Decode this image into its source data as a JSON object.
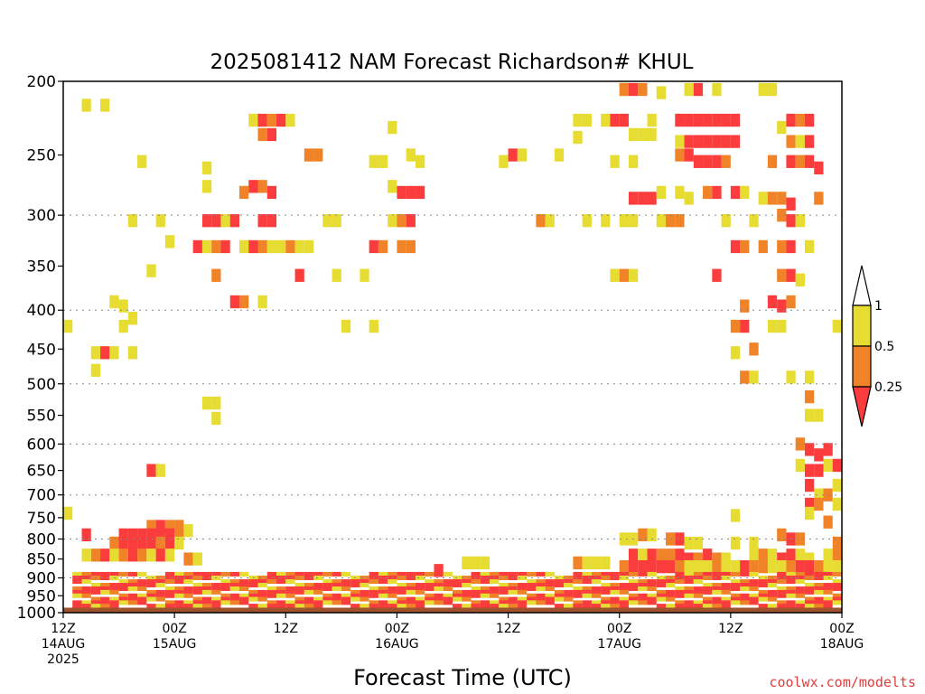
{
  "chart_data": {
    "type": "heatmap",
    "title": "2025081412 NAM Forecast Richardson# KHUL",
    "xlabel": "Forecast Time (UTC)",
    "ylabel": "",
    "y_scale": "log",
    "y_reversed": true,
    "ylim": [
      1000,
      200
    ],
    "xlim": [
      0,
      84
    ],
    "x_units": "hours after 12Z 14AUG 2025",
    "y_ticks": [
      200,
      250,
      300,
      350,
      400,
      450,
      500,
      550,
      600,
      650,
      700,
      750,
      800,
      850,
      900,
      950,
      1000
    ],
    "y_gridlines": [
      300,
      400,
      500,
      600,
      700,
      800,
      900,
      1000
    ],
    "x_ticks": [
      {
        "x": 0,
        "line1": "12Z",
        "line2": "14AUG",
        "line3": "2025"
      },
      {
        "x": 12,
        "line1": "00Z",
        "line2": "15AUG",
        "line3": ""
      },
      {
        "x": 24,
        "line1": "12Z",
        "line2": "",
        "line3": ""
      },
      {
        "x": 36,
        "line1": "00Z",
        "line2": "16AUG",
        "line3": ""
      },
      {
        "x": 48,
        "line1": "12Z",
        "line2": "",
        "line3": ""
      },
      {
        "x": 60,
        "line1": "00Z",
        "line2": "17AUG",
        "line3": ""
      },
      {
        "x": 72,
        "line1": "12Z",
        "line2": "",
        "line3": ""
      },
      {
        "x": 84,
        "line1": "00Z",
        "line2": "18AUG",
        "line3": ""
      }
    ],
    "grid": true,
    "colorbar": {
      "placement": "right",
      "labels": [
        "1",
        "0.5",
        "0.25"
      ],
      "bins": [
        {
          "range": "0.5-1",
          "color": "#e6dc32"
        },
        {
          "range": "0.25-0.5",
          "color": "#f08228"
        },
        {
          "range": "<0.25",
          "color": "#fa3c3c"
        }
      ]
    },
    "colors": {
      "Y": "#e6dc32",
      "O": "#f08228",
      "R": "#fa3c3c",
      "ground": "#a0522d"
    },
    "ground_below_hpa": 985,
    "cells": [
      [
        2,
        215,
        "Y"
      ],
      [
        4,
        215,
        "Y"
      ],
      [
        60,
        205,
        "Y"
      ],
      [
        60,
        205,
        "O"
      ],
      [
        61,
        205,
        "R"
      ],
      [
        62,
        205,
        "O"
      ],
      [
        64,
        207,
        "Y"
      ],
      [
        67,
        205,
        "Y"
      ],
      [
        68,
        205,
        "R"
      ],
      [
        70,
        205,
        "Y"
      ],
      [
        75,
        205,
        "Y"
      ],
      [
        76,
        205,
        "Y"
      ],
      [
        20,
        225,
        "Y"
      ],
      [
        21,
        225,
        "R"
      ],
      [
        22,
        225,
        "O"
      ],
      [
        23,
        225,
        "R"
      ],
      [
        24,
        225,
        "Y"
      ],
      [
        35,
        230,
        "Y"
      ],
      [
        55,
        225,
        "Y"
      ],
      [
        56,
        225,
        "Y"
      ],
      [
        58,
        225,
        "Y"
      ],
      [
        59,
        225,
        "R"
      ],
      [
        60,
        225,
        "R"
      ],
      [
        63,
        225,
        "Y"
      ],
      [
        66,
        225,
        "R"
      ],
      [
        67,
        225,
        "R"
      ],
      [
        68,
        225,
        "R"
      ],
      [
        69,
        225,
        "R"
      ],
      [
        70,
        225,
        "R"
      ],
      [
        71,
        225,
        "R"
      ],
      [
        72,
        225,
        "R"
      ],
      [
        77,
        230,
        "Y"
      ],
      [
        78,
        225,
        "R"
      ],
      [
        79,
        225,
        "O"
      ],
      [
        80,
        225,
        "R"
      ],
      [
        21,
        235,
        "O"
      ],
      [
        22,
        235,
        "R"
      ],
      [
        55,
        237,
        "Y"
      ],
      [
        61,
        235,
        "Y"
      ],
      [
        62,
        235,
        "Y"
      ],
      [
        63,
        235,
        "Y"
      ],
      [
        66,
        240,
        "Y"
      ],
      [
        67,
        240,
        "R"
      ],
      [
        68,
        240,
        "R"
      ],
      [
        69,
        240,
        "R"
      ],
      [
        70,
        240,
        "R"
      ],
      [
        71,
        240,
        "R"
      ],
      [
        72,
        240,
        "R"
      ],
      [
        78,
        240,
        "O"
      ],
      [
        79,
        240,
        "Y"
      ],
      [
        80,
        240,
        "R"
      ],
      [
        8,
        255,
        "Y"
      ],
      [
        15,
        260,
        "Y"
      ],
      [
        26,
        250,
        "O"
      ],
      [
        27,
        250,
        "O"
      ],
      [
        33,
        255,
        "Y"
      ],
      [
        34,
        255,
        "Y"
      ],
      [
        37,
        250,
        "Y"
      ],
      [
        38,
        255,
        "Y"
      ],
      [
        47,
        255,
        "Y"
      ],
      [
        48,
        250,
        "R"
      ],
      [
        49,
        250,
        "Y"
      ],
      [
        53,
        250,
        "Y"
      ],
      [
        59,
        255,
        "Y"
      ],
      [
        61,
        255,
        "Y"
      ],
      [
        66,
        250,
        "O"
      ],
      [
        67,
        250,
        "R"
      ],
      [
        68,
        255,
        "R"
      ],
      [
        69,
        255,
        "R"
      ],
      [
        70,
        255,
        "R"
      ],
      [
        71,
        255,
        "O"
      ],
      [
        76,
        255,
        "O"
      ],
      [
        78,
        255,
        "R"
      ],
      [
        79,
        255,
        "O"
      ],
      [
        80,
        255,
        "R"
      ],
      [
        81,
        260,
        "R"
      ],
      [
        15,
        275,
        "Y"
      ],
      [
        19,
        280,
        "O"
      ],
      [
        20,
        275,
        "R"
      ],
      [
        21,
        275,
        "O"
      ],
      [
        22,
        280,
        "R"
      ],
      [
        35,
        275,
        "Y"
      ],
      [
        36,
        280,
        "R"
      ],
      [
        37,
        280,
        "R"
      ],
      [
        38,
        280,
        "R"
      ],
      [
        61,
        285,
        "R"
      ],
      [
        62,
        285,
        "R"
      ],
      [
        63,
        285,
        "R"
      ],
      [
        64,
        280,
        "Y"
      ],
      [
        66,
        280,
        "Y"
      ],
      [
        67,
        285,
        "Y"
      ],
      [
        69,
        280,
        "O"
      ],
      [
        70,
        280,
        "R"
      ],
      [
        72,
        280,
        "R"
      ],
      [
        73,
        280,
        "Y"
      ],
      [
        75,
        285,
        "Y"
      ],
      [
        76,
        285,
        "O"
      ],
      [
        77,
        285,
        "O"
      ],
      [
        78,
        290,
        "R"
      ],
      [
        81,
        285,
        "O"
      ],
      [
        7,
        305,
        "Y"
      ],
      [
        10,
        305,
        "Y"
      ],
      [
        15,
        305,
        "R"
      ],
      [
        16,
        305,
        "R"
      ],
      [
        17,
        305,
        "Y"
      ],
      [
        18,
        305,
        "R"
      ],
      [
        21,
        305,
        "R"
      ],
      [
        22,
        305,
        "R"
      ],
      [
        28,
        305,
        "Y"
      ],
      [
        29,
        305,
        "Y"
      ],
      [
        35,
        305,
        "Y"
      ],
      [
        36,
        305,
        "O"
      ],
      [
        37,
        305,
        "R"
      ],
      [
        51,
        305,
        "O"
      ],
      [
        52,
        305,
        "Y"
      ],
      [
        56,
        305,
        "Y"
      ],
      [
        58,
        305,
        "Y"
      ],
      [
        60,
        305,
        "Y"
      ],
      [
        61,
        305,
        "Y"
      ],
      [
        64,
        305,
        "Y"
      ],
      [
        65,
        305,
        "O"
      ],
      [
        66,
        305,
        "O"
      ],
      [
        71,
        305,
        "Y"
      ],
      [
        74,
        305,
        "Y"
      ],
      [
        77,
        300,
        "O"
      ],
      [
        78,
        305,
        "R"
      ],
      [
        79,
        305,
        "Y"
      ],
      [
        11,
        325,
        "Y"
      ],
      [
        14,
        330,
        "R"
      ],
      [
        15,
        330,
        "Y"
      ],
      [
        16,
        330,
        "O"
      ],
      [
        17,
        330,
        "R"
      ],
      [
        19,
        330,
        "Y"
      ],
      [
        20,
        330,
        "R"
      ],
      [
        21,
        330,
        "O"
      ],
      [
        22,
        330,
        "Y"
      ],
      [
        23,
        330,
        "Y"
      ],
      [
        24,
        330,
        "O"
      ],
      [
        25,
        330,
        "Y"
      ],
      [
        26,
        330,
        "Y"
      ],
      [
        33,
        330,
        "R"
      ],
      [
        34,
        330,
        "O"
      ],
      [
        36,
        330,
        "O"
      ],
      [
        37,
        330,
        "O"
      ],
      [
        72,
        330,
        "R"
      ],
      [
        73,
        330,
        "O"
      ],
      [
        75,
        330,
        "O"
      ],
      [
        77,
        330,
        "O"
      ],
      [
        78,
        330,
        "R"
      ],
      [
        80,
        330,
        "Y"
      ],
      [
        9,
        355,
        "Y"
      ],
      [
        16,
        360,
        "O"
      ],
      [
        25,
        360,
        "R"
      ],
      [
        29,
        360,
        "Y"
      ],
      [
        32,
        360,
        "Y"
      ],
      [
        59,
        360,
        "Y"
      ],
      [
        60,
        360,
        "O"
      ],
      [
        61,
        360,
        "Y"
      ],
      [
        70,
        360,
        "R"
      ],
      [
        77,
        360,
        "O"
      ],
      [
        78,
        360,
        "R"
      ],
      [
        79,
        365,
        "Y"
      ],
      [
        5,
        390,
        "Y"
      ],
      [
        6,
        395,
        "Y"
      ],
      [
        7,
        410,
        "Y"
      ],
      [
        18,
        390,
        "R"
      ],
      [
        19,
        390,
        "O"
      ],
      [
        21,
        390,
        "Y"
      ],
      [
        73,
        395,
        "O"
      ],
      [
        76,
        390,
        "R"
      ],
      [
        77,
        395,
        "R"
      ],
      [
        78,
        390,
        "O"
      ],
      [
        0,
        420,
        "Y"
      ],
      [
        6,
        420,
        "Y"
      ],
      [
        30,
        420,
        "Y"
      ],
      [
        33,
        420,
        "Y"
      ],
      [
        72,
        420,
        "O"
      ],
      [
        73,
        420,
        "R"
      ],
      [
        76,
        420,
        "Y"
      ],
      [
        77,
        420,
        "Y"
      ],
      [
        83,
        420,
        "Y"
      ],
      [
        3,
        455,
        "Y"
      ],
      [
        4,
        455,
        "R"
      ],
      [
        5,
        455,
        "Y"
      ],
      [
        7,
        455,
        "Y"
      ],
      [
        74,
        450,
        "O"
      ],
      [
        72,
        455,
        "Y"
      ],
      [
        3,
        480,
        "Y"
      ],
      [
        73,
        490,
        "O"
      ],
      [
        74,
        490,
        "Y"
      ],
      [
        80,
        490,
        "Y"
      ],
      [
        78,
        490,
        "Y"
      ],
      [
        15,
        530,
        "Y"
      ],
      [
        16,
        530,
        "Y"
      ],
      [
        80,
        520,
        "O"
      ],
      [
        16,
        555,
        "Y"
      ],
      [
        80,
        550,
        "Y"
      ],
      [
        81,
        550,
        "Y"
      ],
      [
        79,
        600,
        "O"
      ],
      [
        80,
        610,
        "R"
      ],
      [
        81,
        620,
        "R"
      ],
      [
        82,
        610,
        "R"
      ],
      [
        79,
        640,
        "Y"
      ],
      [
        80,
        650,
        "R"
      ],
      [
        81,
        650,
        "R"
      ],
      [
        82,
        640,
        "Y"
      ],
      [
        83,
        640,
        "R"
      ],
      [
        9,
        650,
        "R"
      ],
      [
        10,
        650,
        "Y"
      ],
      [
        80,
        680,
        "R"
      ],
      [
        81,
        700,
        "Y"
      ],
      [
        82,
        700,
        "O"
      ],
      [
        83,
        680,
        "Y"
      ],
      [
        80,
        720,
        "R"
      ],
      [
        81,
        720,
        "O"
      ],
      [
        80,
        740,
        "Y"
      ],
      [
        0,
        740,
        "Y"
      ],
      [
        72,
        745,
        "Y"
      ],
      [
        82,
        760,
        "O"
      ],
      [
        83,
        720,
        "Y"
      ],
      [
        9,
        770,
        "O"
      ],
      [
        10,
        770,
        "R"
      ],
      [
        11,
        770,
        "O"
      ],
      [
        12,
        770,
        "O"
      ],
      [
        13,
        780,
        "Y"
      ],
      [
        6,
        790,
        "R"
      ],
      [
        7,
        790,
        "R"
      ],
      [
        8,
        790,
        "R"
      ],
      [
        9,
        790,
        "R"
      ],
      [
        10,
        790,
        "R"
      ],
      [
        11,
        790,
        "R"
      ],
      [
        12,
        790,
        "O"
      ],
      [
        2,
        790,
        "R"
      ],
      [
        5,
        810,
        "O"
      ],
      [
        6,
        810,
        "R"
      ],
      [
        7,
        810,
        "R"
      ],
      [
        8,
        810,
        "R"
      ],
      [
        9,
        810,
        "R"
      ],
      [
        10,
        810,
        "O"
      ],
      [
        11,
        810,
        "R"
      ],
      [
        12,
        810,
        "Y"
      ],
      [
        60,
        800,
        "Y"
      ],
      [
        61,
        800,
        "Y"
      ],
      [
        62,
        790,
        "O"
      ],
      [
        63,
        790,
        "Y"
      ],
      [
        65,
        800,
        "O"
      ],
      [
        66,
        800,
        "R"
      ],
      [
        67,
        810,
        "Y"
      ],
      [
        68,
        810,
        "Y"
      ],
      [
        72,
        810,
        "Y"
      ],
      [
        77,
        790,
        "O"
      ],
      [
        78,
        800,
        "R"
      ],
      [
        79,
        800,
        "O"
      ],
      [
        83,
        810,
        "O"
      ],
      [
        74,
        810,
        "Y"
      ],
      [
        3,
        840,
        "O"
      ],
      [
        4,
        840,
        "R"
      ],
      [
        5,
        840,
        "Y"
      ],
      [
        6,
        840,
        "O"
      ],
      [
        7,
        840,
        "R"
      ],
      [
        8,
        840,
        "O"
      ],
      [
        9,
        840,
        "Y"
      ],
      [
        10,
        840,
        "R"
      ],
      [
        11,
        840,
        "Y"
      ],
      [
        2,
        840,
        "Y"
      ],
      [
        13,
        850,
        "O"
      ],
      [
        14,
        850,
        "Y"
      ],
      [
        61,
        840,
        "R"
      ],
      [
        62,
        840,
        "Y"
      ],
      [
        63,
        840,
        "R"
      ],
      [
        64,
        840,
        "O"
      ],
      [
        65,
        840,
        "O"
      ],
      [
        66,
        840,
        "R"
      ],
      [
        67,
        850,
        "R"
      ],
      [
        68,
        850,
        "O"
      ],
      [
        69,
        840,
        "R"
      ],
      [
        70,
        850,
        "O"
      ],
      [
        71,
        850,
        "Y"
      ],
      [
        74,
        840,
        "Y"
      ],
      [
        75,
        840,
        "O"
      ],
      [
        76,
        840,
        "Y"
      ],
      [
        77,
        850,
        "R"
      ],
      [
        78,
        840,
        "R"
      ],
      [
        79,
        840,
        "Y"
      ],
      [
        80,
        850,
        "Y"
      ],
      [
        82,
        840,
        "Y"
      ],
      [
        83,
        840,
        "O"
      ],
      [
        40,
        880,
        "R"
      ],
      [
        43,
        860,
        "Y"
      ],
      [
        44,
        860,
        "Y"
      ],
      [
        45,
        860,
        "Y"
      ],
      [
        55,
        860,
        "O"
      ],
      [
        56,
        860,
        "Y"
      ],
      [
        57,
        860,
        "Y"
      ],
      [
        58,
        860,
        "Y"
      ],
      [
        60,
        870,
        "O"
      ],
      [
        61,
        870,
        "R"
      ],
      [
        62,
        870,
        "R"
      ],
      [
        63,
        870,
        "R"
      ],
      [
        64,
        870,
        "R"
      ],
      [
        65,
        870,
        "R"
      ],
      [
        66,
        870,
        "O"
      ],
      [
        67,
        870,
        "Y"
      ],
      [
        68,
        870,
        "Y"
      ],
      [
        69,
        870,
        "Y"
      ],
      [
        70,
        870,
        "O"
      ],
      [
        71,
        870,
        "Y"
      ],
      [
        72,
        870,
        "Y"
      ],
      [
        73,
        870,
        "R"
      ],
      [
        74,
        870,
        "O"
      ],
      [
        75,
        870,
        "O"
      ],
      [
        76,
        870,
        "Y"
      ],
      [
        77,
        870,
        "Y"
      ],
      [
        78,
        870,
        "O"
      ],
      [
        79,
        870,
        "R"
      ],
      [
        80,
        870,
        "R"
      ],
      [
        81,
        870,
        "O"
      ],
      [
        82,
        870,
        "Y"
      ],
      [
        83,
        870,
        "Y"
      ]
    ],
    "bands": [
      {
        "from_hour": 1,
        "to_hour": 84,
        "from_hpa": 985,
        "to_hpa": 890,
        "pattern": "boundary-layer"
      }
    ]
  },
  "credit": "coolwx.com/modelts"
}
